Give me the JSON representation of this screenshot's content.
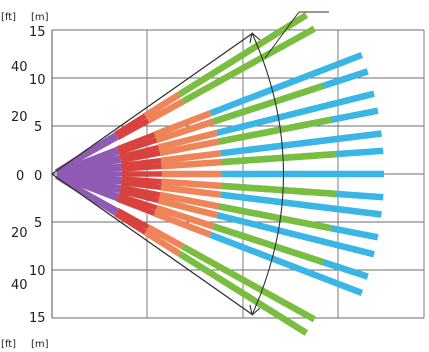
{
  "units": {
    "top": [
      "[ft]",
      "[m]"
    ],
    "bottom": [
      "[ft]",
      "[m]"
    ]
  },
  "feet_labels": [
    "40",
    "20",
    "0",
    "20",
    "40"
  ],
  "meter_labels": [
    "15",
    "10",
    "5",
    "0",
    "5",
    "10",
    "15"
  ],
  "colors": {
    "grid": "#6d6d6d",
    "outline": "#303030",
    "purple": "#8f5bb4",
    "red": "#d8433f",
    "orange": "#ee8457",
    "blue": "#39b5e6",
    "green": "#79be3e"
  },
  "beams": [
    {
      "angle": -32,
      "len": 300
    },
    {
      "angle": -29,
      "len": 300
    },
    {
      "angle": -21,
      "len": 332
    },
    {
      "angle": -18,
      "len": 332
    },
    {
      "angle": -14,
      "len": 332
    },
    {
      "angle": -11,
      "len": 332
    },
    {
      "angle": -7,
      "len": 332
    },
    {
      "angle": -4,
      "len": 332
    },
    {
      "angle": 0,
      "len": 332
    },
    {
      "angle": 4,
      "len": 332
    },
    {
      "angle": 7,
      "len": 332
    },
    {
      "angle": 11,
      "len": 332
    },
    {
      "angle": 14,
      "len": 332
    },
    {
      "angle": 18,
      "len": 332
    },
    {
      "angle": 21,
      "len": 332
    },
    {
      "angle": 29,
      "len": 300
    },
    {
      "angle": 32,
      "len": 300
    }
  ]
}
